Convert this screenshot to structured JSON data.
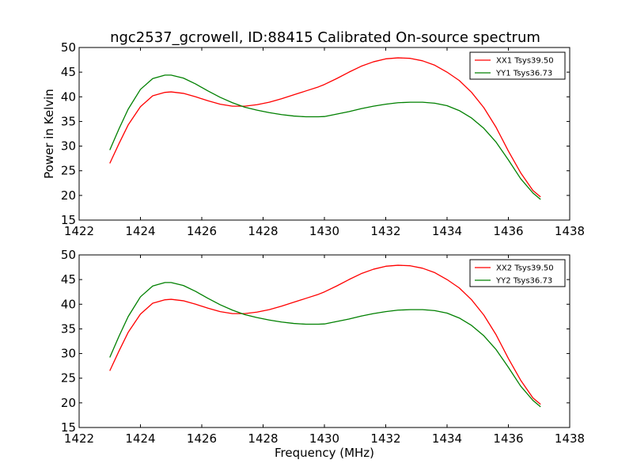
{
  "title": "ngc2537_gcrowell, ID:88415 Calibrated On-source spectrum",
  "chart_data": [
    {
      "type": "line",
      "xlabel": "",
      "ylabel": "Power in Kelvin",
      "xlim": [
        1422,
        1438
      ],
      "ylim": [
        15,
        50
      ],
      "xticks": [
        "1422",
        "1424",
        "1426",
        "1428",
        "1430",
        "1432",
        "1434",
        "1436",
        "1438"
      ],
      "yticks": [
        "15",
        "20",
        "25",
        "30",
        "35",
        "40",
        "45",
        "50"
      ],
      "legend_position": "top-right",
      "grid": false,
      "series": [
        {
          "name": "XX1 Tsys39.50",
          "color": "#ff0000",
          "x": [
            1423.0,
            1423.3,
            1423.6,
            1424.0,
            1424.4,
            1424.8,
            1425.0,
            1425.4,
            1425.8,
            1426.2,
            1426.6,
            1427.0,
            1427.4,
            1427.8,
            1428.2,
            1428.6,
            1429.0,
            1429.4,
            1429.8,
            1430.0,
            1430.4,
            1430.8,
            1431.2,
            1431.6,
            1432.0,
            1432.4,
            1432.8,
            1433.2,
            1433.6,
            1434.0,
            1434.4,
            1434.8,
            1435.2,
            1435.6,
            1436.0,
            1436.4,
            1436.8,
            1437.05
          ],
          "y": [
            26.5,
            30.5,
            34.3,
            38.0,
            40.2,
            40.9,
            41.0,
            40.7,
            40.0,
            39.2,
            38.5,
            38.1,
            38.1,
            38.4,
            38.9,
            39.6,
            40.4,
            41.2,
            42.0,
            42.5,
            43.7,
            45.0,
            46.2,
            47.1,
            47.7,
            47.9,
            47.8,
            47.3,
            46.4,
            45.0,
            43.3,
            40.9,
            37.8,
            33.8,
            29.0,
            24.6,
            21.0,
            19.7
          ]
        },
        {
          "name": "YY1 Tsys36.73",
          "color": "#008000",
          "x": [
            1423.0,
            1423.3,
            1423.6,
            1424.0,
            1424.4,
            1424.8,
            1425.0,
            1425.4,
            1425.8,
            1426.2,
            1426.6,
            1427.0,
            1427.4,
            1427.8,
            1428.2,
            1428.6,
            1429.0,
            1429.4,
            1429.8,
            1430.0,
            1430.4,
            1430.8,
            1431.2,
            1431.6,
            1432.0,
            1432.4,
            1432.8,
            1433.2,
            1433.6,
            1434.0,
            1434.4,
            1434.8,
            1435.2,
            1435.6,
            1436.0,
            1436.4,
            1436.8,
            1437.05
          ],
          "y": [
            29.2,
            33.5,
            37.5,
            41.5,
            43.7,
            44.4,
            44.4,
            43.8,
            42.6,
            41.2,
            39.9,
            38.8,
            37.9,
            37.3,
            36.8,
            36.4,
            36.1,
            35.95,
            35.95,
            36.0,
            36.5,
            37.0,
            37.6,
            38.1,
            38.5,
            38.8,
            38.9,
            38.9,
            38.7,
            38.2,
            37.2,
            35.7,
            33.6,
            30.8,
            27.2,
            23.4,
            20.5,
            19.2
          ]
        }
      ]
    },
    {
      "type": "line",
      "xlabel": "Frequency (MHz)",
      "ylabel": "",
      "xlim": [
        1422,
        1438
      ],
      "ylim": [
        15,
        50
      ],
      "xticks": [
        "1422",
        "1424",
        "1426",
        "1428",
        "1430",
        "1432",
        "1434",
        "1436",
        "1438"
      ],
      "yticks": [
        "15",
        "20",
        "25",
        "30",
        "35",
        "40",
        "45",
        "50"
      ],
      "legend_position": "top-right",
      "grid": false,
      "series": [
        {
          "name": "XX2 Tsys39.50",
          "color": "#ff0000",
          "x": [
            1423.0,
            1423.3,
            1423.6,
            1424.0,
            1424.4,
            1424.8,
            1425.0,
            1425.4,
            1425.8,
            1426.2,
            1426.6,
            1427.0,
            1427.4,
            1427.8,
            1428.2,
            1428.6,
            1429.0,
            1429.4,
            1429.8,
            1430.0,
            1430.4,
            1430.8,
            1431.2,
            1431.6,
            1432.0,
            1432.4,
            1432.8,
            1433.2,
            1433.6,
            1434.0,
            1434.4,
            1434.8,
            1435.2,
            1435.6,
            1436.0,
            1436.4,
            1436.8,
            1437.05
          ],
          "y": [
            26.5,
            30.5,
            34.3,
            38.0,
            40.2,
            40.9,
            41.0,
            40.7,
            40.0,
            39.2,
            38.5,
            38.1,
            38.1,
            38.4,
            38.9,
            39.6,
            40.4,
            41.2,
            42.0,
            42.5,
            43.7,
            45.0,
            46.2,
            47.1,
            47.7,
            47.9,
            47.8,
            47.3,
            46.4,
            45.0,
            43.3,
            40.9,
            37.8,
            33.8,
            29.0,
            24.6,
            21.0,
            19.7
          ]
        },
        {
          "name": "YY2 Tsys36.73",
          "color": "#008000",
          "x": [
            1423.0,
            1423.3,
            1423.6,
            1424.0,
            1424.4,
            1424.8,
            1425.0,
            1425.4,
            1425.8,
            1426.2,
            1426.6,
            1427.0,
            1427.4,
            1427.8,
            1428.2,
            1428.6,
            1429.0,
            1429.4,
            1429.8,
            1430.0,
            1430.4,
            1430.8,
            1431.2,
            1431.6,
            1432.0,
            1432.4,
            1432.8,
            1433.2,
            1433.6,
            1434.0,
            1434.4,
            1434.8,
            1435.2,
            1435.6,
            1436.0,
            1436.4,
            1436.8,
            1437.05
          ],
          "y": [
            29.2,
            33.5,
            37.5,
            41.5,
            43.7,
            44.4,
            44.4,
            43.8,
            42.6,
            41.2,
            39.9,
            38.8,
            37.9,
            37.3,
            36.8,
            36.4,
            36.1,
            35.95,
            35.95,
            36.0,
            36.5,
            37.0,
            37.6,
            38.1,
            38.5,
            38.8,
            38.9,
            38.9,
            38.7,
            38.2,
            37.2,
            35.7,
            33.6,
            30.8,
            27.2,
            23.4,
            20.5,
            19.2
          ]
        }
      ]
    }
  ]
}
